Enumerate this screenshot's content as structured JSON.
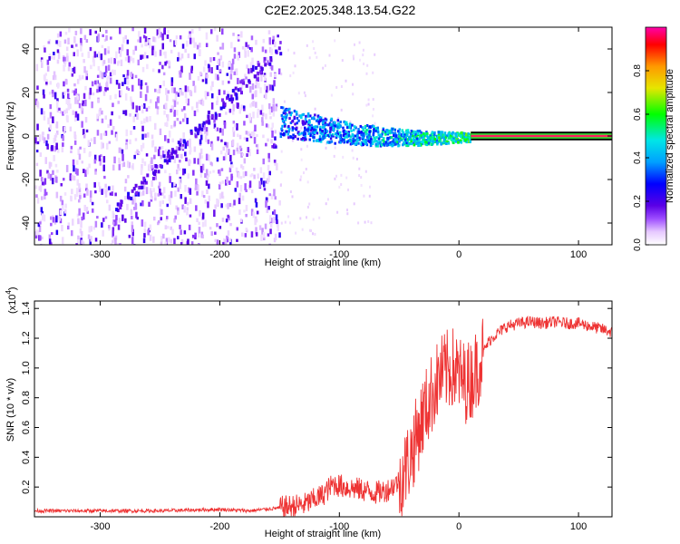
{
  "title": "C2E2.2025.348.13.54.G22",
  "chart_data": [
    {
      "type": "heatmap",
      "xlabel": "Height of straight line (km)",
      "ylabel": "Frequency (Hz)",
      "xlim": [
        -355,
        128
      ],
      "ylim": [
        -50,
        50
      ],
      "xticks": [
        -300,
        -200,
        -100,
        0,
        100
      ],
      "yticks": [
        -40,
        -20,
        0,
        20,
        40
      ],
      "colorbar": {
        "label": "Normalized spectral amplitude",
        "range": [
          0.0,
          1.0
        ],
        "ticks": [
          0.0,
          0.2,
          0.4,
          0.6,
          0.8
        ],
        "colormap": [
          "#ffffff",
          "#e6c8ff",
          "#9d4dff",
          "#5a00e6",
          "#0000ff",
          "#00a0ff",
          "#00e6e6",
          "#00ff00",
          "#e6e600",
          "#ff9900",
          "#ff0000",
          "#ff00aa"
        ]
      },
      "features": [
        {
          "name": "noise region",
          "x_range": [
            -355,
            -150
          ],
          "freq_range": [
            -50,
            50
          ],
          "amplitude": 0.2
        },
        {
          "name": "diagonal streak",
          "from": [
            -290,
            -33
          ],
          "to": [
            -150,
            40
          ],
          "amplitude": 0.3
        },
        {
          "name": "narrowing signal band",
          "x_range": [
            -150,
            10
          ],
          "center_freq": [
            8,
            0
          ],
          "amplitude": 0.5
        },
        {
          "name": "steady tone",
          "x_range": [
            10,
            128
          ],
          "freq": 0,
          "amplitude": 0.95
        }
      ]
    },
    {
      "type": "line",
      "xlabel": "Height of straight line (km)",
      "ylabel": "SNR (10 * v/v)",
      "y_multiplier": "(x10",
      "y_multiplier_exp": "4",
      "y_multiplier_close": ")",
      "xlim": [
        -355,
        128
      ],
      "ylim": [
        0,
        1.45
      ],
      "xticks": [
        -300,
        -200,
        -100,
        0,
        100
      ],
      "yticks": [
        0.2,
        0.4,
        0.6,
        0.8,
        1.0,
        1.2,
        1.4
      ],
      "series": [
        {
          "name": "SNR",
          "color": "#ee3333",
          "x": [
            -355,
            -300,
            -250,
            -200,
            -175,
            -150,
            -130,
            -115,
            -105,
            -95,
            -80,
            -70,
            -60,
            -50,
            -45,
            -40,
            -35,
            -30,
            -25,
            -20,
            -15,
            -10,
            -5,
            0,
            5,
            10,
            15,
            20,
            25,
            30,
            40,
            50,
            60,
            70,
            80,
            90,
            100,
            110,
            120,
            128
          ],
          "values": [
            0.04,
            0.04,
            0.04,
            0.05,
            0.04,
            0.06,
            0.08,
            0.14,
            0.22,
            0.2,
            0.18,
            0.16,
            0.18,
            0.24,
            0.32,
            0.42,
            0.55,
            0.68,
            0.78,
            0.88,
            0.95,
            0.98,
            1.0,
            0.95,
            0.9,
            0.92,
            1.0,
            1.1,
            1.18,
            1.22,
            1.28,
            1.3,
            1.31,
            1.3,
            1.31,
            1.3,
            1.3,
            1.28,
            1.26,
            1.24
          ]
        }
      ]
    }
  ]
}
